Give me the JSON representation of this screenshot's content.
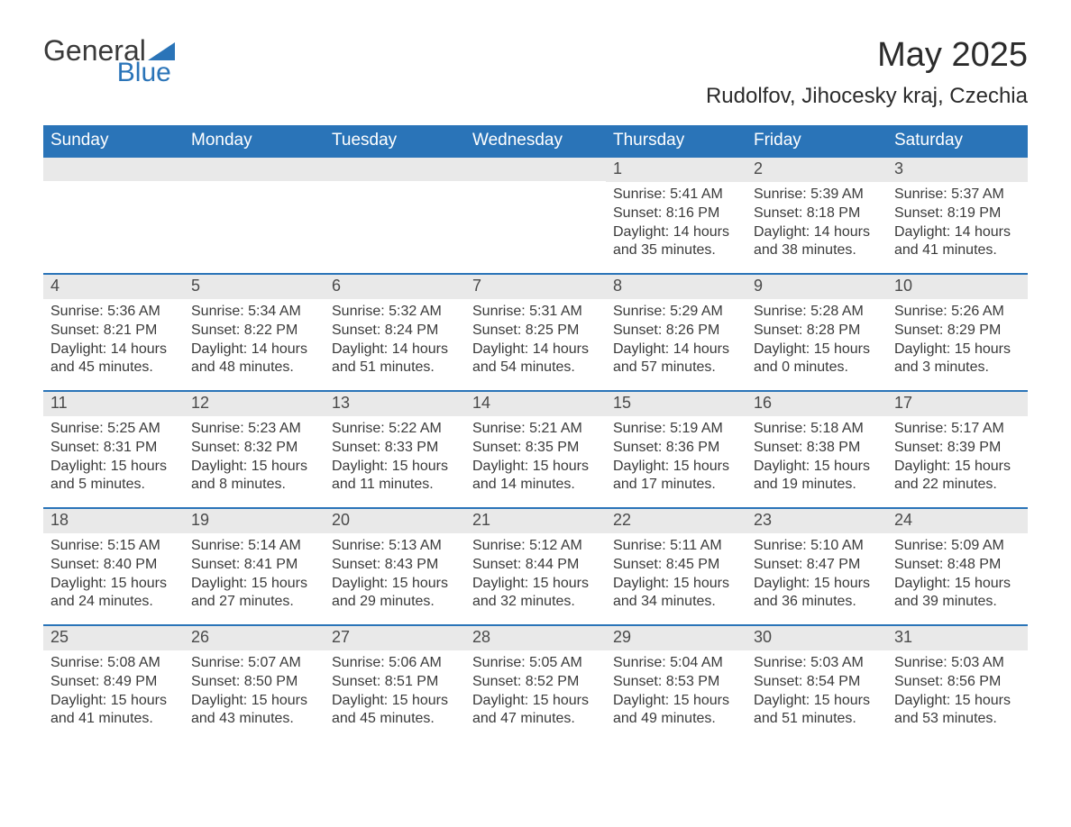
{
  "logo": {
    "word1": "General",
    "word2": "Blue",
    "text_color": "#3a3a3a",
    "accent_color": "#2a74b8"
  },
  "title": "May 2025",
  "subtitle": "Rudolfov, Jihocesky kraj, Czechia",
  "colors": {
    "header_bg": "#2a74b8",
    "header_text": "#ffffff",
    "daynum_bg": "#e9e9e9",
    "week_border": "#2a74b8",
    "body_text": "#3a3a3a",
    "page_bg": "#ffffff"
  },
  "fonts": {
    "title_pt": 38,
    "subtitle_pt": 24,
    "header_pt": 19,
    "daynum_pt": 18,
    "body_pt": 16
  },
  "day_names": [
    "Sunday",
    "Monday",
    "Tuesday",
    "Wednesday",
    "Thursday",
    "Friday",
    "Saturday"
  ],
  "weeks": [
    [
      null,
      null,
      null,
      null,
      {
        "n": "1",
        "sr": "Sunrise: 5:41 AM",
        "ss": "Sunset: 8:16 PM",
        "d1": "Daylight: 14 hours",
        "d2": "and 35 minutes."
      },
      {
        "n": "2",
        "sr": "Sunrise: 5:39 AM",
        "ss": "Sunset: 8:18 PM",
        "d1": "Daylight: 14 hours",
        "d2": "and 38 minutes."
      },
      {
        "n": "3",
        "sr": "Sunrise: 5:37 AM",
        "ss": "Sunset: 8:19 PM",
        "d1": "Daylight: 14 hours",
        "d2": "and 41 minutes."
      }
    ],
    [
      {
        "n": "4",
        "sr": "Sunrise: 5:36 AM",
        "ss": "Sunset: 8:21 PM",
        "d1": "Daylight: 14 hours",
        "d2": "and 45 minutes."
      },
      {
        "n": "5",
        "sr": "Sunrise: 5:34 AM",
        "ss": "Sunset: 8:22 PM",
        "d1": "Daylight: 14 hours",
        "d2": "and 48 minutes."
      },
      {
        "n": "6",
        "sr": "Sunrise: 5:32 AM",
        "ss": "Sunset: 8:24 PM",
        "d1": "Daylight: 14 hours",
        "d2": "and 51 minutes."
      },
      {
        "n": "7",
        "sr": "Sunrise: 5:31 AM",
        "ss": "Sunset: 8:25 PM",
        "d1": "Daylight: 14 hours",
        "d2": "and 54 minutes."
      },
      {
        "n": "8",
        "sr": "Sunrise: 5:29 AM",
        "ss": "Sunset: 8:26 PM",
        "d1": "Daylight: 14 hours",
        "d2": "and 57 minutes."
      },
      {
        "n": "9",
        "sr": "Sunrise: 5:28 AM",
        "ss": "Sunset: 8:28 PM",
        "d1": "Daylight: 15 hours",
        "d2": "and 0 minutes."
      },
      {
        "n": "10",
        "sr": "Sunrise: 5:26 AM",
        "ss": "Sunset: 8:29 PM",
        "d1": "Daylight: 15 hours",
        "d2": "and 3 minutes."
      }
    ],
    [
      {
        "n": "11",
        "sr": "Sunrise: 5:25 AM",
        "ss": "Sunset: 8:31 PM",
        "d1": "Daylight: 15 hours",
        "d2": "and 5 minutes."
      },
      {
        "n": "12",
        "sr": "Sunrise: 5:23 AM",
        "ss": "Sunset: 8:32 PM",
        "d1": "Daylight: 15 hours",
        "d2": "and 8 minutes."
      },
      {
        "n": "13",
        "sr": "Sunrise: 5:22 AM",
        "ss": "Sunset: 8:33 PM",
        "d1": "Daylight: 15 hours",
        "d2": "and 11 minutes."
      },
      {
        "n": "14",
        "sr": "Sunrise: 5:21 AM",
        "ss": "Sunset: 8:35 PM",
        "d1": "Daylight: 15 hours",
        "d2": "and 14 minutes."
      },
      {
        "n": "15",
        "sr": "Sunrise: 5:19 AM",
        "ss": "Sunset: 8:36 PM",
        "d1": "Daylight: 15 hours",
        "d2": "and 17 minutes."
      },
      {
        "n": "16",
        "sr": "Sunrise: 5:18 AM",
        "ss": "Sunset: 8:38 PM",
        "d1": "Daylight: 15 hours",
        "d2": "and 19 minutes."
      },
      {
        "n": "17",
        "sr": "Sunrise: 5:17 AM",
        "ss": "Sunset: 8:39 PM",
        "d1": "Daylight: 15 hours",
        "d2": "and 22 minutes."
      }
    ],
    [
      {
        "n": "18",
        "sr": "Sunrise: 5:15 AM",
        "ss": "Sunset: 8:40 PM",
        "d1": "Daylight: 15 hours",
        "d2": "and 24 minutes."
      },
      {
        "n": "19",
        "sr": "Sunrise: 5:14 AM",
        "ss": "Sunset: 8:41 PM",
        "d1": "Daylight: 15 hours",
        "d2": "and 27 minutes."
      },
      {
        "n": "20",
        "sr": "Sunrise: 5:13 AM",
        "ss": "Sunset: 8:43 PM",
        "d1": "Daylight: 15 hours",
        "d2": "and 29 minutes."
      },
      {
        "n": "21",
        "sr": "Sunrise: 5:12 AM",
        "ss": "Sunset: 8:44 PM",
        "d1": "Daylight: 15 hours",
        "d2": "and 32 minutes."
      },
      {
        "n": "22",
        "sr": "Sunrise: 5:11 AM",
        "ss": "Sunset: 8:45 PM",
        "d1": "Daylight: 15 hours",
        "d2": "and 34 minutes."
      },
      {
        "n": "23",
        "sr": "Sunrise: 5:10 AM",
        "ss": "Sunset: 8:47 PM",
        "d1": "Daylight: 15 hours",
        "d2": "and 36 minutes."
      },
      {
        "n": "24",
        "sr": "Sunrise: 5:09 AM",
        "ss": "Sunset: 8:48 PM",
        "d1": "Daylight: 15 hours",
        "d2": "and 39 minutes."
      }
    ],
    [
      {
        "n": "25",
        "sr": "Sunrise: 5:08 AM",
        "ss": "Sunset: 8:49 PM",
        "d1": "Daylight: 15 hours",
        "d2": "and 41 minutes."
      },
      {
        "n": "26",
        "sr": "Sunrise: 5:07 AM",
        "ss": "Sunset: 8:50 PM",
        "d1": "Daylight: 15 hours",
        "d2": "and 43 minutes."
      },
      {
        "n": "27",
        "sr": "Sunrise: 5:06 AM",
        "ss": "Sunset: 8:51 PM",
        "d1": "Daylight: 15 hours",
        "d2": "and 45 minutes."
      },
      {
        "n": "28",
        "sr": "Sunrise: 5:05 AM",
        "ss": "Sunset: 8:52 PM",
        "d1": "Daylight: 15 hours",
        "d2": "and 47 minutes."
      },
      {
        "n": "29",
        "sr": "Sunrise: 5:04 AM",
        "ss": "Sunset: 8:53 PM",
        "d1": "Daylight: 15 hours",
        "d2": "and 49 minutes."
      },
      {
        "n": "30",
        "sr": "Sunrise: 5:03 AM",
        "ss": "Sunset: 8:54 PM",
        "d1": "Daylight: 15 hours",
        "d2": "and 51 minutes."
      },
      {
        "n": "31",
        "sr": "Sunrise: 5:03 AM",
        "ss": "Sunset: 8:56 PM",
        "d1": "Daylight: 15 hours",
        "d2": "and 53 minutes."
      }
    ]
  ]
}
